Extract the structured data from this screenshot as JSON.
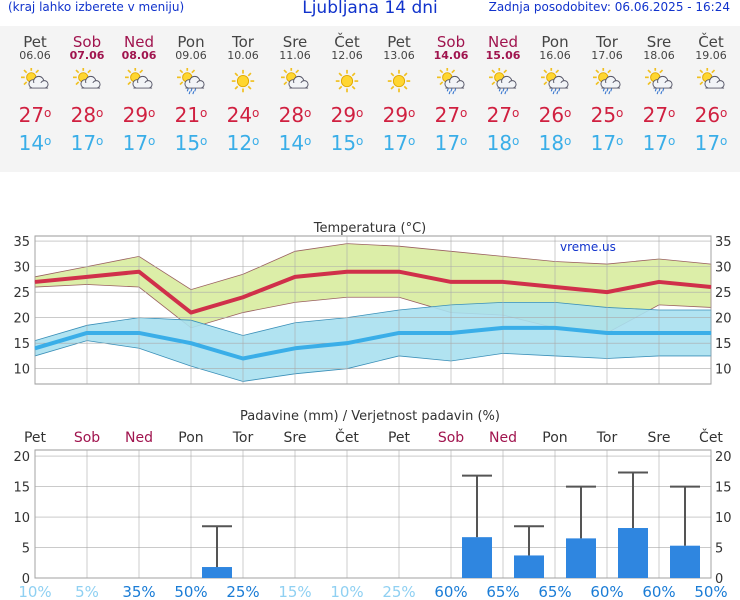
{
  "header": {
    "left": "(kraj lahko izberete v meniju)",
    "title": "Ljubljana 14 dni",
    "updated": "Zadnja posodobitev: 06.06.2025 - 16:24"
  },
  "colors": {
    "max": "#d0304a",
    "min": "#3aaee8",
    "maxBand": "#d8ec9e",
    "minBand": "#a8e0ef",
    "bar": "#2f86e0",
    "weekend": "#a0144e"
  },
  "days": [
    {
      "name": "Pet",
      "date": "06.06",
      "weekend": false,
      "icon": "sun-cloud-icon",
      "max": "27",
      "min": "14"
    },
    {
      "name": "Sob",
      "date": "07.06",
      "weekend": true,
      "icon": "sun-cloud-icon",
      "max": "28",
      "min": "17"
    },
    {
      "name": "Ned",
      "date": "08.06",
      "weekend": true,
      "icon": "sun-cloud-icon",
      "max": "29",
      "min": "17"
    },
    {
      "name": "Pon",
      "date": "09.06",
      "weekend": false,
      "icon": "sun-cloud-rain-icon",
      "max": "21",
      "min": "15"
    },
    {
      "name": "Tor",
      "date": "10.06",
      "weekend": false,
      "icon": "sun-icon",
      "max": "24",
      "min": "12"
    },
    {
      "name": "Sre",
      "date": "11.06",
      "weekend": false,
      "icon": "sun-cloud-icon",
      "max": "28",
      "min": "14"
    },
    {
      "name": "Čet",
      "date": "12.06",
      "weekend": false,
      "icon": "sun-icon",
      "max": "29",
      "min": "15"
    },
    {
      "name": "Pet",
      "date": "13.06",
      "weekend": false,
      "icon": "sun-icon",
      "max": "29",
      "min": "17"
    },
    {
      "name": "Sob",
      "date": "14.06",
      "weekend": true,
      "icon": "sun-cloud-rain-icon",
      "max": "27",
      "min": "17"
    },
    {
      "name": "Ned",
      "date": "15.06",
      "weekend": true,
      "icon": "sun-cloud-rain-icon",
      "max": "27",
      "min": "18"
    },
    {
      "name": "Pon",
      "date": "16.06",
      "weekend": false,
      "icon": "sun-cloud-rain-icon",
      "max": "26",
      "min": "18"
    },
    {
      "name": "Tor",
      "date": "17.06",
      "weekend": false,
      "icon": "sun-cloud-rain-icon",
      "max": "25",
      "min": "17"
    },
    {
      "name": "Sre",
      "date": "18.06",
      "weekend": false,
      "icon": "sun-cloud-rain-icon",
      "max": "27",
      "min": "17"
    },
    {
      "name": "Čet",
      "date": "19.06",
      "weekend": false,
      "icon": "sun-cloud-icon",
      "max": "26",
      "min": "17"
    }
  ],
  "chart_data": [
    {
      "type": "line",
      "title": "Temperatura (°C)",
      "watermark": "vreme.us",
      "x": [
        "06.06",
        "07.06",
        "08.06",
        "09.06",
        "10.06",
        "11.06",
        "12.06",
        "13.06",
        "14.06",
        "15.06",
        "16.06",
        "17.06",
        "18.06",
        "19.06"
      ],
      "ylim": [
        7,
        36
      ],
      "yticks": [
        10,
        15,
        20,
        25,
        30,
        35
      ],
      "grid": true,
      "series": [
        {
          "values": [
            27,
            28,
            29,
            21,
            24,
            28,
            29,
            29,
            27,
            27,
            26,
            25,
            27,
            26
          ]
        },
        {
          "values": [
            14,
            17,
            17,
            15,
            12,
            14,
            15,
            17,
            17,
            18,
            18,
            17,
            17,
            17
          ]
        }
      ],
      "max_band": {
        "high": [
          28,
          30,
          32,
          25.5,
          28.5,
          33,
          34.5,
          34,
          33,
          32,
          31,
          30.5,
          31.5,
          30.5
        ],
        "low": [
          26,
          26.5,
          26,
          18,
          21,
          23,
          24,
          24,
          21,
          20.5,
          18,
          17,
          22.5,
          22
        ]
      },
      "min_band": {
        "high": [
          15.5,
          18.5,
          20,
          19.5,
          16.5,
          19,
          20,
          21.5,
          22.5,
          23,
          23,
          22,
          21.5,
          21.5
        ],
        "low": [
          12.5,
          15.5,
          14,
          10.5,
          7.5,
          9,
          10,
          12.5,
          11.5,
          13,
          12.5,
          12,
          12.5,
          12.5
        ]
      }
    },
    {
      "type": "bar",
      "title": "Padavine (mm) / Verjetnost padavin (%)",
      "categories": [
        "Pet",
        "Sob",
        "Ned",
        "Pon",
        "Tor",
        "Sre",
        "Čet",
        "Pet",
        "Sob",
        "Ned",
        "Pon",
        "Tor",
        "Sre",
        "Čet"
      ],
      "weekend": [
        false,
        true,
        true,
        false,
        false,
        false,
        false,
        false,
        true,
        true,
        false,
        false,
        false,
        false
      ],
      "values": [
        0,
        0,
        0,
        1.8,
        0,
        0,
        0,
        0,
        6.7,
        3.7,
        6.5,
        8.2,
        5.3,
        0
      ],
      "error_high": [
        0,
        0,
        0,
        8.5,
        0,
        0,
        0,
        0,
        16.8,
        8.5,
        15,
        17.3,
        15,
        0
      ],
      "probability": [
        "10%",
        "5%",
        "35%",
        "50%",
        "25%",
        "15%",
        "10%",
        "25%",
        "60%",
        "65%",
        "65%",
        "60%",
        "60%",
        "50%"
      ],
      "prob_dark": [
        false,
        false,
        true,
        true,
        true,
        false,
        false,
        false,
        true,
        true,
        true,
        true,
        true,
        true
      ],
      "ylim": [
        0,
        21
      ],
      "yticks": [
        0,
        5,
        10,
        15,
        20
      ],
      "grid": true
    }
  ]
}
